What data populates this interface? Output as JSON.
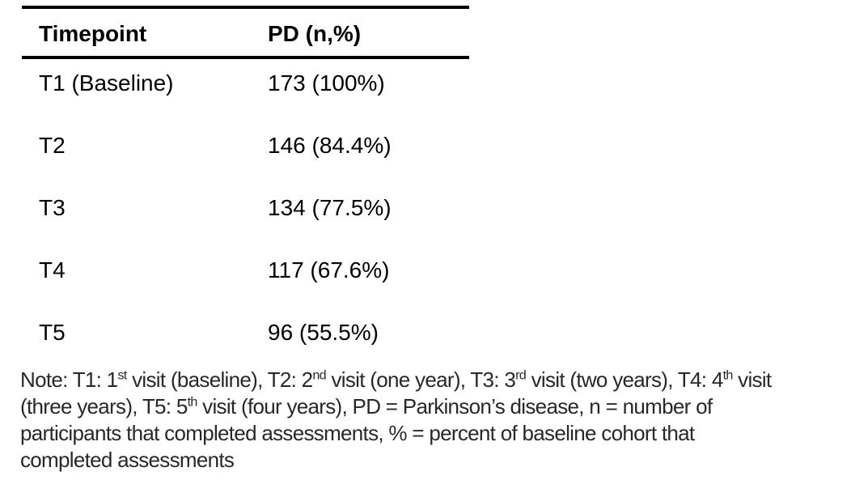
{
  "table": {
    "columns": [
      "Timepoint",
      "PD (n,%)"
    ],
    "rows": [
      [
        "T1 (Baseline)",
        "173 (100%)"
      ],
      [
        "T2",
        "146 (84.4%)"
      ],
      [
        "T3",
        "134 (77.5%)"
      ],
      [
        "T4",
        "117 (67.6%)"
      ],
      [
        "T5",
        "96 (55.5%)"
      ]
    ]
  },
  "note": {
    "lines": [
      [
        {
          "t": "Note: T1: 1"
        },
        {
          "t": "st"
        },
        {
          "t": " visit (baseline), T2: 2"
        },
        {
          "t": "nd"
        },
        {
          "t": " visit (one year), T3: 3"
        },
        {
          "t": "rd"
        },
        {
          "t": " visit (two years), T4: 4"
        },
        {
          "t": "th"
        },
        {
          "t": " visit"
        }
      ],
      [
        {
          "t": "(three years), T5: 5"
        },
        {
          "t": "th"
        },
        {
          "t": " visit (four years), PD = Parkinson’s disease, n = number of"
        }
      ],
      [
        {
          "t": "participants that completed assessments, % = percent of baseline cohort that"
        }
      ],
      [
        {
          "t": "completed assessments"
        }
      ]
    ]
  },
  "colors": {
    "table_text": "#000000",
    "note_text": "#282828",
    "rule": "#000000",
    "background": "#ffffff"
  }
}
